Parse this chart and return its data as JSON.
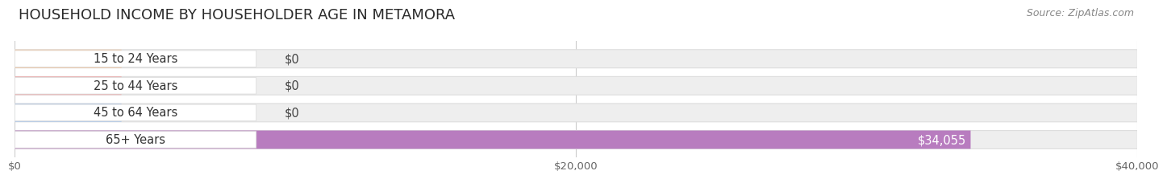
{
  "title": "HOUSEHOLD INCOME BY HOUSEHOLDER AGE IN METAMORA",
  "source": "Source: ZipAtlas.com",
  "categories": [
    "15 to 24 Years",
    "25 to 44 Years",
    "45 to 64 Years",
    "65+ Years"
  ],
  "values": [
    0,
    0,
    0,
    34055
  ],
  "bar_colors": [
    "#f5c49a",
    "#f0a0a0",
    "#b0c8e8",
    "#b87cbf"
  ],
  "value_labels": [
    "$0",
    "$0",
    "$0",
    "$34,055"
  ],
  "xlim": [
    0,
    40000
  ],
  "xticks": [
    0,
    20000,
    40000
  ],
  "xtick_labels": [
    "$0",
    "$20,000",
    "$40,000"
  ],
  "background_color": "#ffffff",
  "bar_bg_color": "#eeeeee",
  "bar_border_color": "#dddddd",
  "title_fontsize": 13,
  "source_fontsize": 9,
  "label_fontsize": 10.5,
  "tick_fontsize": 9.5
}
